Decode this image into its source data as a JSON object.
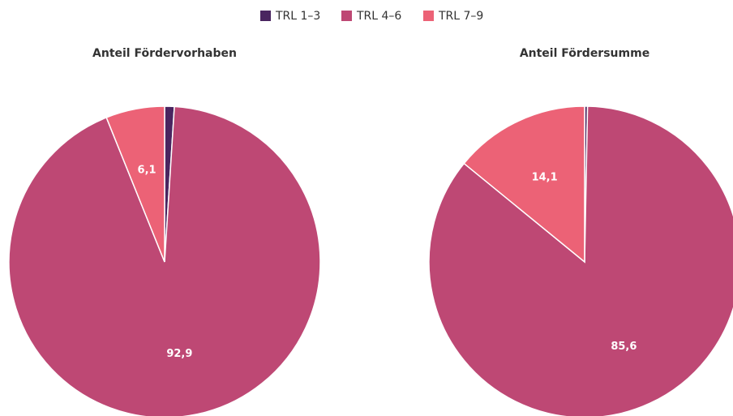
{
  "chart_data": [
    {
      "type": "pie",
      "title": "Anteil Fördervorhaben",
      "categories": [
        "TRL 1–3",
        "TRL 4–6",
        "TRL 7–9"
      ],
      "values": [
        1.0,
        92.9,
        6.1
      ],
      "value_labels": [
        null,
        "92,9",
        "6,1"
      ],
      "colors": [
        "#4a2560",
        "#be4874",
        "#ec6276"
      ]
    },
    {
      "type": "pie",
      "title": "Anteil Fördersumme",
      "categories": [
        "TRL 1–3",
        "TRL 4–6",
        "TRL 7–9"
      ],
      "values": [
        0.3,
        85.6,
        14.1
      ],
      "value_labels": [
        null,
        "85,6",
        "14,1"
      ],
      "colors": [
        "#4a2560",
        "#be4874",
        "#ec6276"
      ]
    }
  ]
}
